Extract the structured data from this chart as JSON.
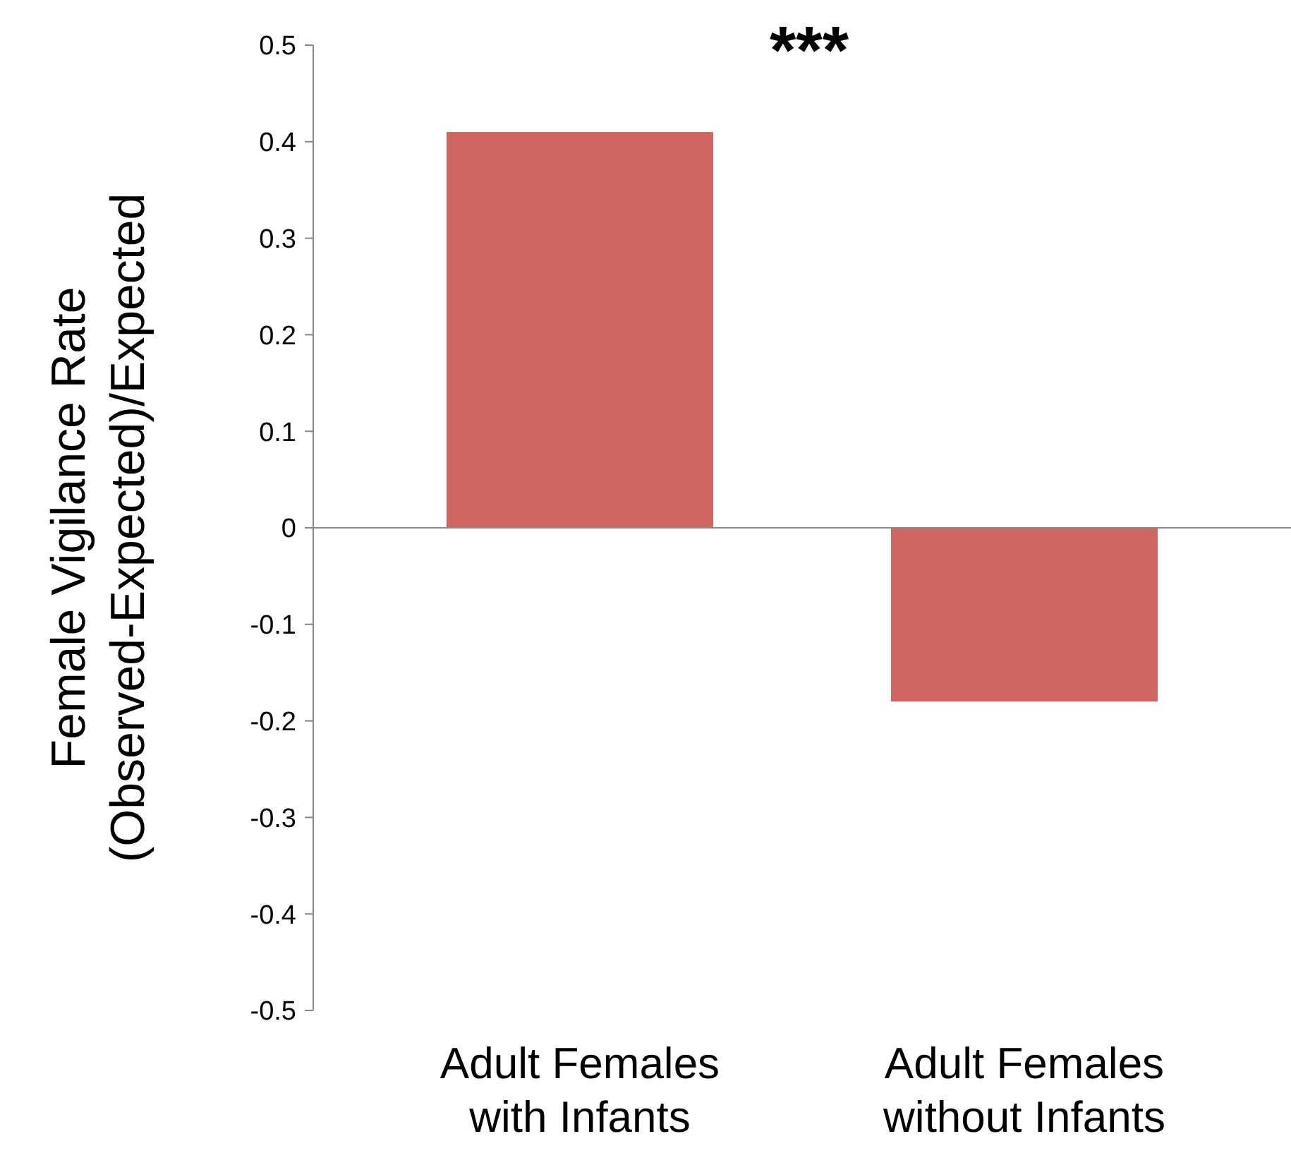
{
  "chart_data": {
    "type": "bar",
    "ylabel": "Female Vigilance Rate\n(Observed-Expected)/Expected",
    "categories": [
      "Adult Females with Infants",
      "Adult Females without Infants"
    ],
    "values": [
      0.41,
      -0.18
    ],
    "color": "#cd665e",
    "ylim": [
      -0.5,
      0.5
    ],
    "yticks": [
      -0.5,
      -0.4,
      -0.3,
      -0.2,
      -0.1,
      0,
      0.1,
      0.2,
      0.3,
      0.4,
      0.5
    ],
    "annotations": [
      "***"
    ]
  }
}
